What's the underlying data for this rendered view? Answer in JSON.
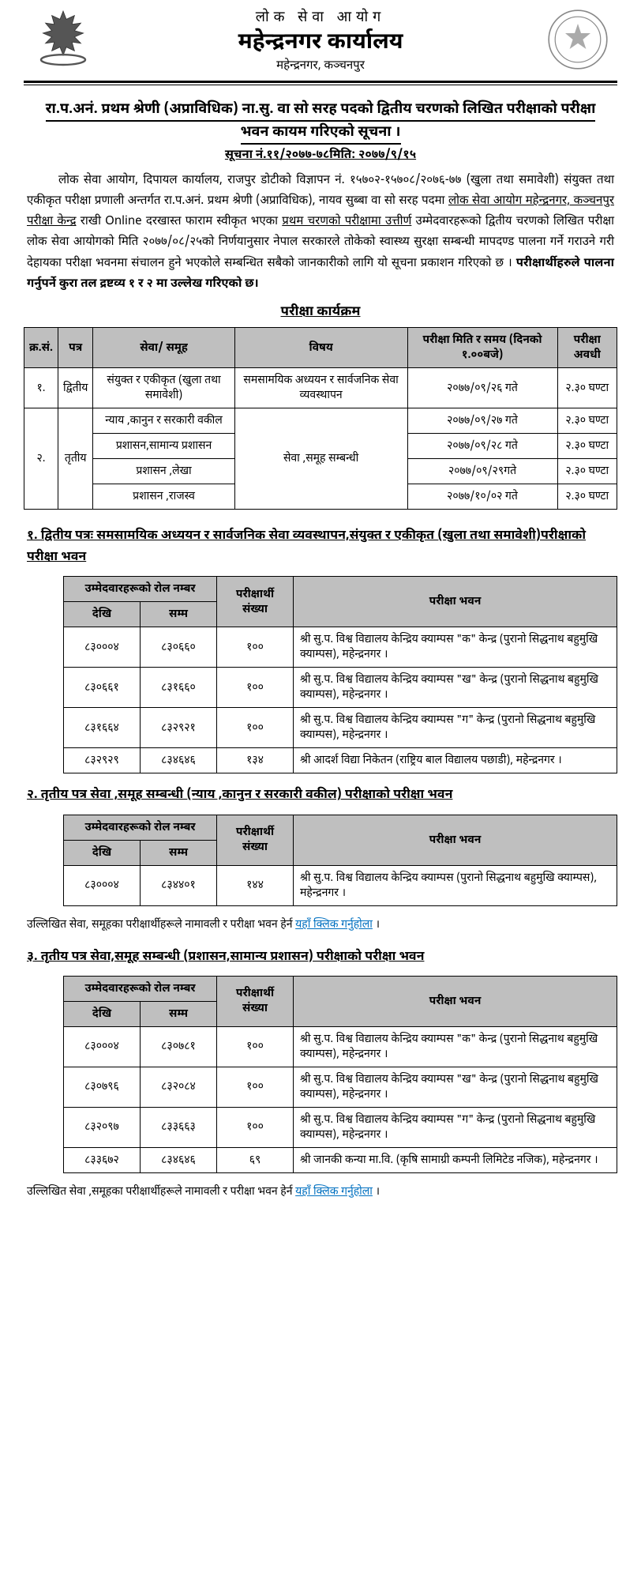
{
  "header": {
    "org": "लोक सेवा आयोग",
    "office": "महेन्द्रनगर कार्यालय",
    "location": "महेन्द्रनगर, कञ्चनपुर"
  },
  "title": "रा.प.अनं. प्रथम श्रेणी (अप्राविधिक) ना.सु. वा सो सरह पदको द्वितीय चरणको लिखित परीक्षाको परीक्षा भवन कायम गरिएको सूचना ।",
  "notice_no": "सूचना नं.११/२०७७-७८मिति: २०७७/९/१५",
  "para_pre": "लोक सेवा आयोग,  दिपायल कार्यालय, राजपुर डोटीको विज्ञापन नं. १५७०२-१५७०८/२०७६-७७ (खुला तथा समावेशी) संयुक्त तथा एकीकृत परीक्षा प्रणाली अन्तर्गत रा.प.अनं. प्रथम श्रेणी (अप्राविधिक), नायव सुब्बा वा सो सरह पदमा ",
  "para_u": "लोक सेवा आयोग महेन्द्रनगर, कञ्चनपुर परीक्षा केन्द्र",
  "para_mid1": " राखी Online दरखास्त फाराम स्वीकृत भएका ",
  "para_u2": "प्रथम  चरणको परीक्षामा उत्तीर्ण",
  "para_mid2": " उम्मेदवारहरूको द्वितीय चरणको लिखित परीक्षा लोक सेवा आयोगको मिति २०७७/०८/२५को निर्णयानुसार नेपाल सरकारले तोकेको स्वास्थ्य  सुरक्षा सम्बन्धी मापदण्ड पालना गर्ने गराउने गरी देहायका परीक्षा भवनमा संचालन हुने भएकोले सम्बन्धित सबैको जानकारीको लागि यो सूचना प्रकाशन गरिएको छ । ",
  "para_bold": "परीक्षार्थीहरुले पालना गर्नुपर्ने कुरा  तल द्रष्टव्य १ र २ मा उल्लेख गरिएको छ।",
  "sched_title": "परीक्षा कार्यक्रम",
  "sched": {
    "headers": [
      "क्र.सं.",
      "पत्र",
      "सेवा/ समूह",
      "विषय",
      "परीक्षा मिति र समय (दिनको १.००बजे)",
      "परीक्षा अवधी"
    ],
    "row1": {
      "sn": "१.",
      "paper": "द्वितीय",
      "group": "संयुक्त र एकीकृत (खुला तथा समावेशी)",
      "subject": "समसामयिक अध्ययन र सार्वजनिक सेवा व्यवस्थापन",
      "date": "२०७७/०९/२६ गते",
      "dur": "२.३० घण्टा"
    },
    "row2": {
      "sn": "२.",
      "paper": "तृतीय",
      "subject": "सेवा ,समूह सम्बन्धी",
      "subs": [
        {
          "group": "न्याय ,कानुन र सरकारी वकील",
          "date": "२०७७/०९/२७ गते",
          "dur": "२.३० घण्टा"
        },
        {
          "group": "प्रशासन,सामान्य प्रशासन",
          "date": "२०७७/०९/२८ गते",
          "dur": "२.३० घण्टा"
        },
        {
          "group": "प्रशासन ,लेखा",
          "date": "२०७७/०९/२९गते",
          "dur": "२.३० घण्टा"
        },
        {
          "group": "प्रशासन ,राजस्व",
          "date": "२०७७/१०/०२ गते",
          "dur": "२.३० घण्टा"
        }
      ]
    }
  },
  "sections": [
    {
      "title": "१. द्वितीय पत्रः समसामयिक अध्ययन र सार्वजनिक सेवा व्यवस्थापन,संयुक्त र एकीकृत (खुला तथा समावेशी)परीक्षाको परीक्षा भवन",
      "rows": [
        {
          "from": "८३०००४",
          "to": "८३०६६०",
          "count": "१००",
          "venue": "श्री सु.प. विश्व विद्यालय केन्द्रिय क्याम्पस \"क\" केन्द्र (पुरानो सिद्धनाथ बहुमुखि क्याम्पस), महेन्द्रनगर ।"
        },
        {
          "from": "८३०६६१",
          "to": "८३१६६०",
          "count": "१००",
          "venue": "श्री सु.प. विश्व विद्यालय केन्द्रिय क्याम्पस \"ख\" केन्द्र (पुरानो सिद्धनाथ बहुमुखि क्याम्पस), महेन्द्रनगर ।"
        },
        {
          "from": "८३१६६४",
          "to": "८३२९२१",
          "count": "१००",
          "venue": "श्री सु.प. विश्व विद्यालय  केन्द्रिय क्याम्पस \"ग\" केन्द्र (पुरानो सिद्धनाथ बहुमुखि क्याम्पस), महेन्द्रनगर ।"
        },
        {
          "from": "८३२९२९",
          "to": "८३४६४६",
          "count": "१३४",
          "venue": "श्री आदर्श विद्या निकेतन (राष्ट्रिय बाल विद्यालय पछाडी), महेन्द्रनगर ।"
        }
      ]
    },
    {
      "title": "२. तृतीय पत्र सेवा ,समूह सम्बन्धी (न्याय ,कानुन र सरकारी वकील) परीक्षाको परीक्षा भवन",
      "rows": [
        {
          "from": "८३०००४",
          "to": "८३४४०१",
          "count": "१४४",
          "venue": "श्री सु.प. विश्व विद्यालय केन्द्रिय क्याम्पस  (पुरानो सिद्धनाथ बहुमुखि क्याम्पस), महेन्द्रनगर ।"
        }
      ],
      "link_pre": "उल्लिखित सेवा, समूहका परीक्षार्थीहरूले नामावली र परीक्षा भवन हेर्न ",
      "link_text": "यहाँ क्लिक गर्नुहोला",
      "link_post": " ।"
    },
    {
      "title": "३. तृतीय पत्र सेवा,समूह सम्बन्धी (प्रशासन,सामान्य प्रशासन) परीक्षाको परीक्षा भवन",
      "rows": [
        {
          "from": "८३०००४",
          "to": "८३०७८१",
          "count": "१००",
          "venue": "श्री सु.प. विश्व विद्यालय केन्द्रिय क्याम्पस \"क\" केन्द्र (पुरानो सिद्धनाथ बहुमुखि क्याम्पस), महेन्द्रनगर ।"
        },
        {
          "from": "८३०७९६",
          "to": "८३२०८४",
          "count": "१००",
          "venue": "श्री सु.प. विश्व विद्यालय केन्द्रिय क्याम्पस \"ख\" केन्द्र (पुरानो सिद्धनाथ बहुमुखि क्याम्पस), महेन्द्रनगर ।"
        },
        {
          "from": "८३२०९७",
          "to": "८३३६६३",
          "count": "१००",
          "venue": "श्री सु.प. विश्व विद्यालय  केन्द्रिय क्याम्पस \"ग\" केन्द्र (पुरानो सिद्धनाथ बहुमुखि क्याम्पस), महेन्द्रनगर ।"
        },
        {
          "from": "८३३६७२",
          "to": "८३४६४६",
          "count": "६९",
          "venue": "श्री जानकी कन्या मा.वि. (कृषि सामाग्री कम्पनी लिमिटेड नजिक), महेन्द्रनगर ।"
        }
      ],
      "link_pre": "उल्लिखित सेवा ,समूहका परीक्षार्थीहरूले नामावली र परीक्षा भवन हेर्न ",
      "link_text": "यहाँ क्लिक गर्नुहोला",
      "link_post": " ।"
    }
  ],
  "venue_headers": {
    "roll": "उम्मेदवारहरूको रोल नम्बर",
    "from": "देखि",
    "to": "सम्म",
    "count": "परीक्षार्थी संख्या",
    "venue": "परीक्षा भवन"
  },
  "colors": {
    "header_bg": "#bfbfbf",
    "link": "#0070c0",
    "text": "#000000",
    "bg": "#ffffff"
  }
}
